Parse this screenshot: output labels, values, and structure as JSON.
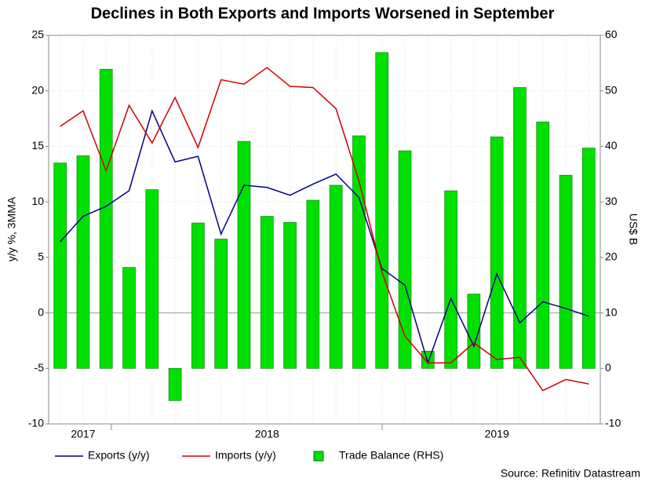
{
  "chart_data": {
    "type": "bar_line_combo",
    "title": "Declines in Both Exports and Imports Worsened in September",
    "y_label": "y/y %, 3MMA",
    "y2_label": "US$ B",
    "source": "Source: Refinitiv Datastream",
    "categories": [
      null,
      "2017",
      null,
      null,
      null,
      null,
      null,
      null,
      null,
      "2018",
      null,
      null,
      null,
      null,
      null,
      null,
      null,
      null,
      null,
      "2019",
      null,
      null,
      null,
      null
    ],
    "ylim": [
      -10,
      25
    ],
    "yticks": [
      -10,
      -5,
      0,
      5,
      10,
      15,
      20,
      25
    ],
    "y2lim": [
      -10,
      60
    ],
    "y2ticks": [
      -10,
      0,
      10,
      20,
      30,
      40,
      50,
      60
    ],
    "grid": true,
    "series": [
      {
        "name": "Exports (y/y)",
        "type": "line",
        "color": "#000080",
        "values": [
          6.4,
          8.7,
          9.6,
          11,
          18.2,
          13.6,
          14.1,
          7.1,
          11.5,
          11.3,
          10.6,
          11.6,
          12.5,
          10.4,
          4,
          2.5,
          -4.5,
          1.3,
          -3,
          3.5,
          -0.9,
          1,
          0.4,
          -0.3
        ]
      },
      {
        "name": "Imports (y/y)",
        "type": "line",
        "color": "#d00000",
        "values": [
          16.8,
          18.2,
          12.8,
          18.7,
          15.3,
          19.4,
          14.9,
          21,
          20.6,
          22.1,
          20.4,
          20.3,
          18.4,
          11.9,
          3.7,
          -2.1,
          -4.5,
          -4.5,
          -2.7,
          -4.2,
          -4,
          -7,
          -6,
          -6.4
        ]
      },
      {
        "name": "Trade Balance (RHS)",
        "type": "bar",
        "axis": "y2",
        "color": "#00e000",
        "values": [
          37,
          38.3,
          53.9,
          18.2,
          32.2,
          -5.8,
          26.2,
          23.3,
          40.9,
          27.4,
          26.3,
          30.3,
          33,
          41.9,
          56.9,
          39.2,
          3.1,
          32,
          13.4,
          41.7,
          50.6,
          44.4,
          34.8,
          39.7
        ]
      }
    ]
  }
}
